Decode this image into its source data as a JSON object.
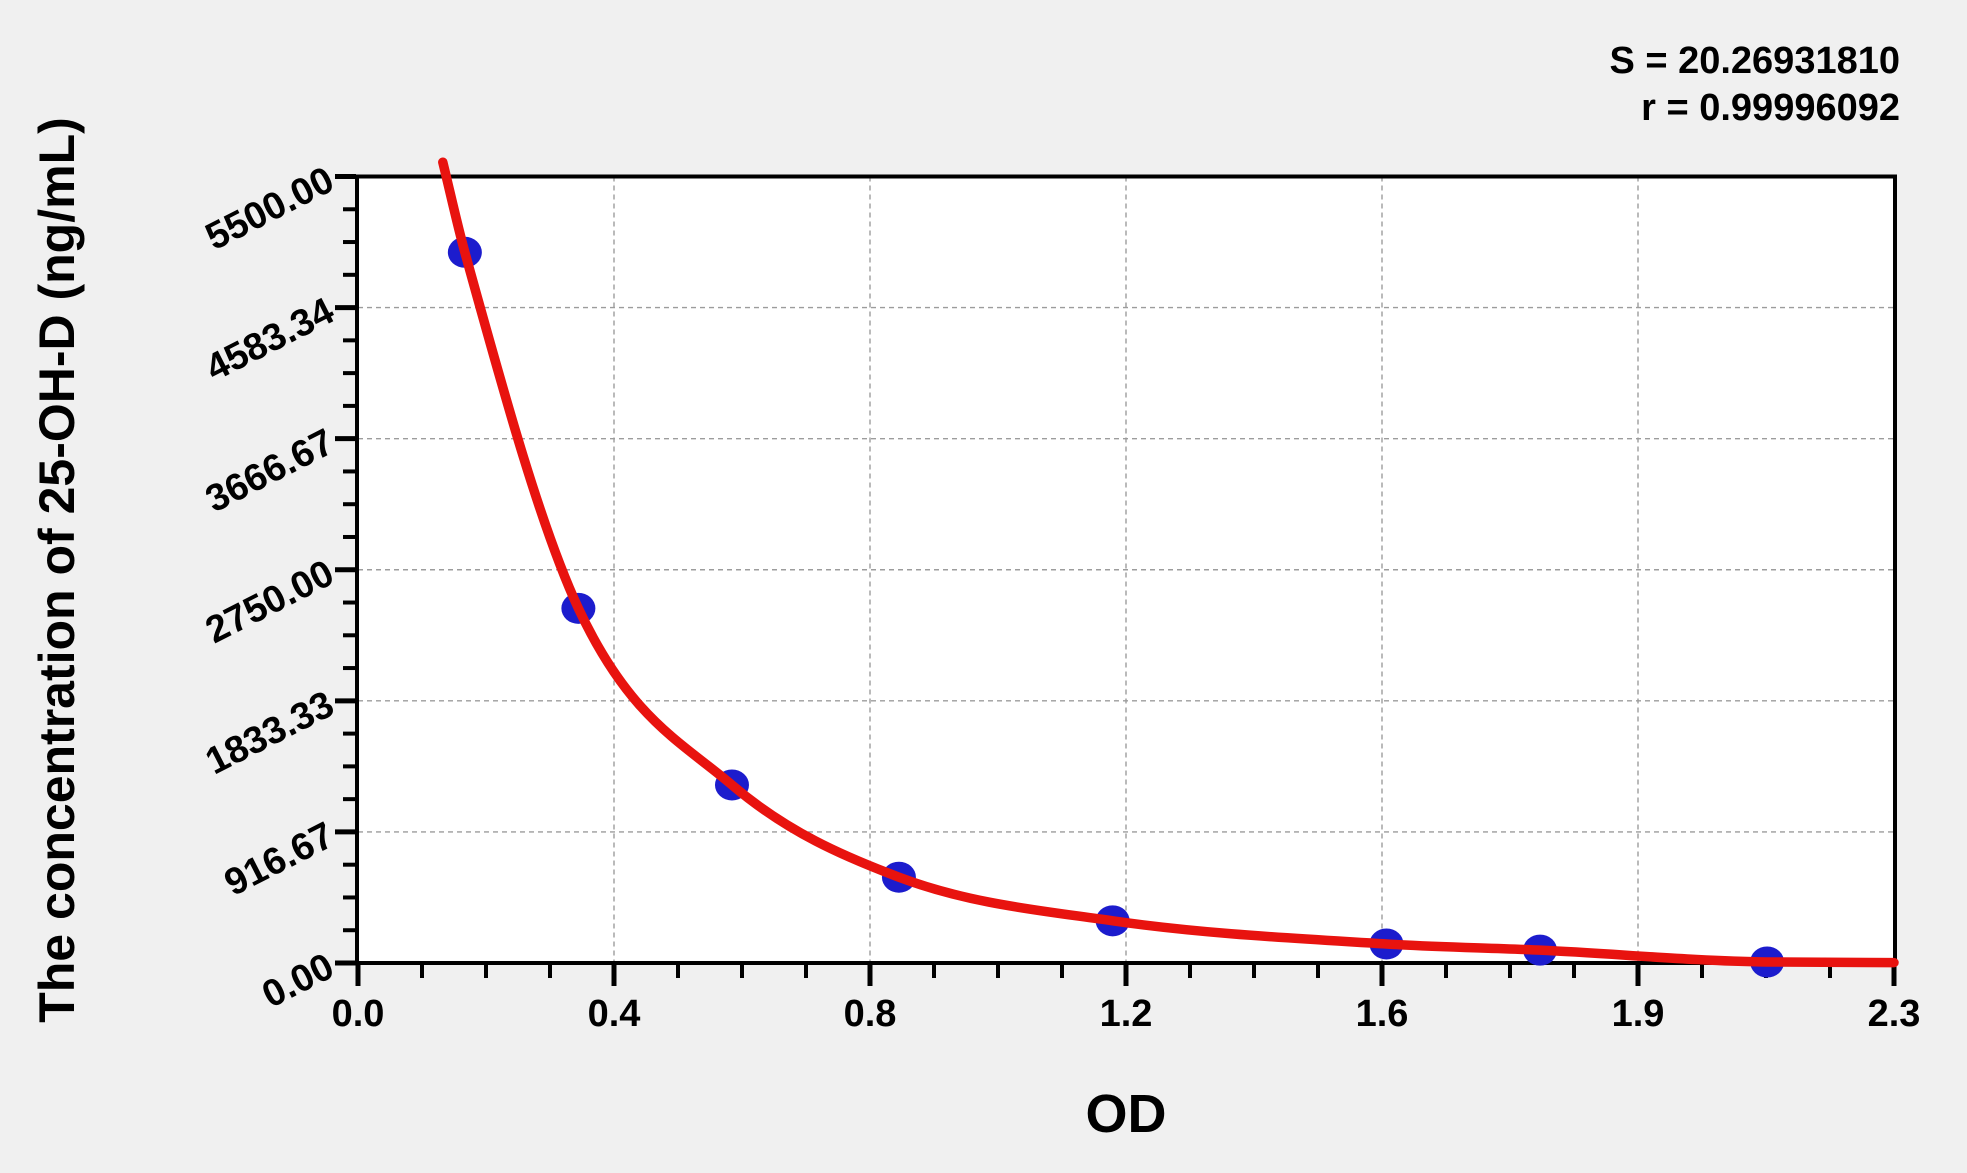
{
  "annotations": {
    "s_value": "S = 20.26931810",
    "r_value": "r = 0.99996092"
  },
  "chart_data": {
    "type": "scatter",
    "title": "",
    "xlabel": "OD",
    "ylabel": "The concentration of 25-OH-D (ng/mL)",
    "xlim": [
      0,
      2.3
    ],
    "ylim": [
      0,
      5500
    ],
    "x_tick_labels": [
      "0.0",
      "0.4",
      "0.8",
      "1.2",
      "1.6",
      "1.9",
      "2.3"
    ],
    "y_tick_labels": [
      "0.00",
      "916.67",
      "1833.33",
      "2750.00",
      "3666.67",
      "4583.34",
      "5500.00"
    ],
    "y_tick_values": [
      0,
      916.67,
      1833.33,
      2750.0,
      3666.67,
      4583.34,
      5500.0
    ],
    "minor_divisions": 4,
    "grid": "dashed at major ticks",
    "legend_position": "none",
    "points": [
      {
        "od": 0.16,
        "conc": 4970
      },
      {
        "od": 0.33,
        "conc": 2480
      },
      {
        "od": 0.56,
        "conc": 1245
      },
      {
        "od": 0.81,
        "conc": 600
      },
      {
        "od": 1.13,
        "conc": 295
      },
      {
        "od": 1.54,
        "conc": 133
      },
      {
        "od": 1.77,
        "conc": 90
      },
      {
        "od": 2.11,
        "conc": 7
      }
    ],
    "fit_curve": [
      [
        0.127,
        5600
      ],
      [
        0.16,
        4970
      ],
      [
        0.33,
        2480
      ],
      [
        0.56,
        1245
      ],
      [
        0.81,
        600
      ],
      [
        1.13,
        295
      ],
      [
        1.54,
        133
      ],
      [
        1.77,
        90
      ],
      [
        2.11,
        7
      ],
      [
        2.3,
        3
      ]
    ]
  },
  "colors": {
    "background": "#f0f0f0",
    "plot_background": "#ffffff",
    "axis": "#000000",
    "grid": "#9c9c9c",
    "point_fill": "#1c1ccd",
    "curve": "#e8130f"
  }
}
